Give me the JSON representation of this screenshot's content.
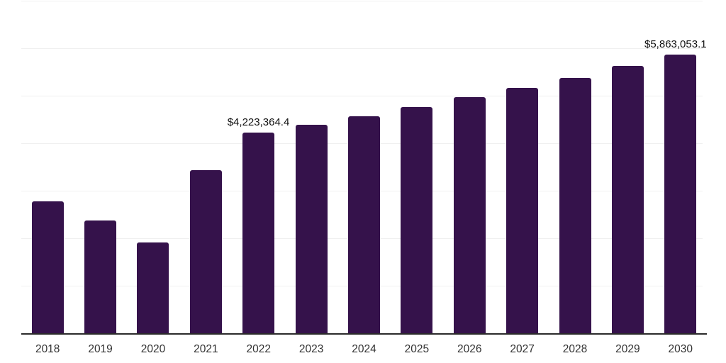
{
  "chart_data": {
    "type": "bar",
    "title": "",
    "xlabel": "",
    "ylabel": "",
    "categories": [
      "2018",
      "2019",
      "2020",
      "2021",
      "2022",
      "2023",
      "2024",
      "2025",
      "2026",
      "2027",
      "2028",
      "2029",
      "2030"
    ],
    "values": [
      2780000,
      2375000,
      1915000,
      3435000,
      4223364.4,
      4390000,
      4565000,
      4760000,
      4970000,
      5160000,
      5370000,
      5625000,
      5863053.1
    ],
    "data_labels": [
      "",
      "",
      "",
      "",
      "$4,223,364.4",
      "",
      "",
      "",
      "",
      "",
      "",
      "",
      "$5,863,053.1"
    ],
    "ylim": [
      0,
      7000000
    ],
    "grid_interval": 1000000,
    "grid": true,
    "legend": false,
    "y_axis_labels_visible": false
  },
  "colors": {
    "bar": "#35124b",
    "grid": "#f0f0f0",
    "axis": "#2b2b2b",
    "tick_text": "#333333",
    "data_label_text": "#111111",
    "background": "#ffffff"
  }
}
